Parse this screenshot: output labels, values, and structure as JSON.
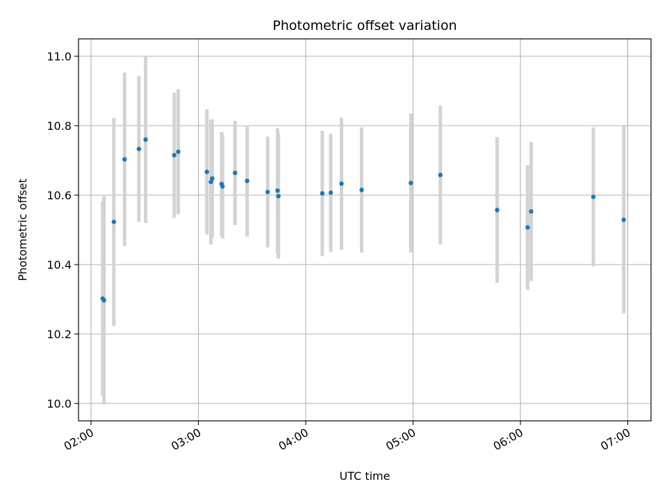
{
  "chart_data": {
    "type": "scatter",
    "title": "Photometric offset variation",
    "xlabel": "UTC time",
    "ylabel": "Photometric offset",
    "x_unit": "UTC time",
    "xlim": [
      "01:53",
      "07:13"
    ],
    "ylim": [
      9.95,
      11.05
    ],
    "x_ticks": [
      "02:00",
      "03:00",
      "04:00",
      "05:00",
      "06:00",
      "07:00"
    ],
    "y_ticks": [
      10.0,
      10.2,
      10.4,
      10.6,
      10.8,
      11.0
    ],
    "grid": true,
    "legend": "none",
    "colors": {
      "points": "#1f77b4",
      "errorbars": "#d3d3d3",
      "grid": "#b0b0b0"
    },
    "series": [
      {
        "points": [
          {
            "x": "02:06:30",
            "y": 10.302,
            "yerr": 0.28
          },
          {
            "x": "02:07:15",
            "y": 10.297,
            "yerr": 0.3
          },
          {
            "x": "02:12:45",
            "y": 10.523,
            "yerr": 0.3
          },
          {
            "x": "02:18:45",
            "y": 10.703,
            "yerr": 0.25
          },
          {
            "x": "02:26:45",
            "y": 10.733,
            "yerr": 0.21
          },
          {
            "x": "02:30:30",
            "y": 10.76,
            "yerr": 0.24
          },
          {
            "x": "02:46:30",
            "y": 10.715,
            "yerr": 0.18
          },
          {
            "x": "02:48:45",
            "y": 10.725,
            "yerr": 0.18
          },
          {
            "x": "03:04:45",
            "y": 10.667,
            "yerr": 0.18
          },
          {
            "x": "03:07:00",
            "y": 10.638,
            "yerr": 0.18
          },
          {
            "x": "03:07:45",
            "y": 10.648,
            "yerr": 0.17
          },
          {
            "x": "03:13:00",
            "y": 10.632,
            "yerr": 0.15
          },
          {
            "x": "03:13:30",
            "y": 10.625,
            "yerr": 0.15
          },
          {
            "x": "03:20:30",
            "y": 10.664,
            "yerr": 0.15
          },
          {
            "x": "03:27:15",
            "y": 10.641,
            "yerr": 0.16
          },
          {
            "x": "03:38:45",
            "y": 10.609,
            "yerr": 0.16
          },
          {
            "x": "03:44:15",
            "y": 10.613,
            "yerr": 0.18
          },
          {
            "x": "03:44:45",
            "y": 10.597,
            "yerr": 0.18
          },
          {
            "x": "04:09:15",
            "y": 10.605,
            "yerr": 0.18
          },
          {
            "x": "04:14:00",
            "y": 10.607,
            "yerr": 0.17
          },
          {
            "x": "04:20:00",
            "y": 10.633,
            "yerr": 0.19
          },
          {
            "x": "04:31:15",
            "y": 10.615,
            "yerr": 0.18
          },
          {
            "x": "04:58:45",
            "y": 10.635,
            "yerr": 0.2
          },
          {
            "x": "05:15:15",
            "y": 10.658,
            "yerr": 0.2
          },
          {
            "x": "05:47:00",
            "y": 10.557,
            "yerr": 0.21
          },
          {
            "x": "06:04:00",
            "y": 10.507,
            "yerr": 0.18
          },
          {
            "x": "06:06:00",
            "y": 10.553,
            "yerr": 0.2
          },
          {
            "x": "06:40:45",
            "y": 10.595,
            "yerr": 0.2
          },
          {
            "x": "06:57:45",
            "y": 10.529,
            "yerr": 0.27
          }
        ]
      }
    ]
  }
}
